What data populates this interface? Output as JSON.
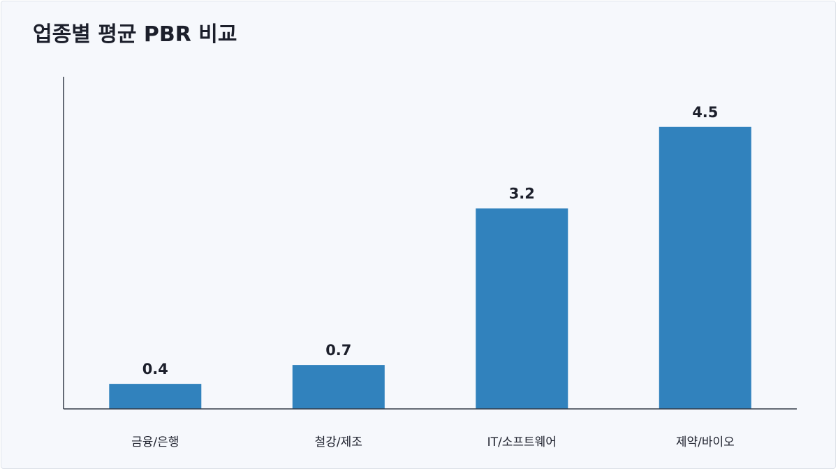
{
  "chart_data": {
    "type": "bar",
    "title": "업종별 평균 PBR 비교",
    "categories": [
      "금융/은행",
      "철강/제조",
      "IT/소프트웨어",
      "제약/바이오"
    ],
    "values": [
      0.4,
      0.7,
      3.2,
      4.5
    ],
    "value_labels": [
      "0.4",
      "0.7",
      "3.2",
      "4.5"
    ],
    "xlabel": "",
    "ylabel": "",
    "ylim": [
      0,
      5.3
    ],
    "grid": false,
    "legend": "none",
    "bar_color": "#3182bd",
    "background_color": "#f6f8fc",
    "text_color": "#1c1f2b"
  }
}
